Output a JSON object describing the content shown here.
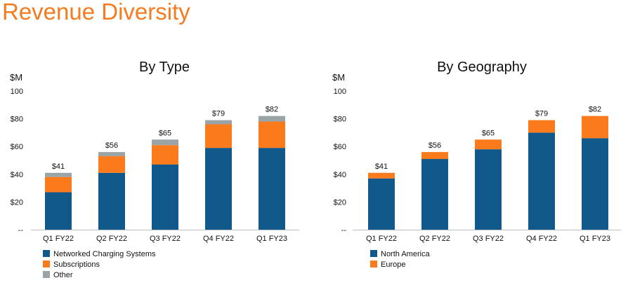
{
  "page": {
    "title": "Revenue Diversity"
  },
  "colors": {
    "title": "#f47b20",
    "navy": "#11598a",
    "orange": "#fb7a1c",
    "gray": "#9aa4a6"
  },
  "chart_data": [
    {
      "type": "bar",
      "stacked": true,
      "title": "By Type",
      "ylabel": "$M",
      "ylim": [
        0,
        100
      ],
      "yticks": [
        "--",
        "$20",
        "$40",
        "$60",
        "$80",
        "100"
      ],
      "categories": [
        "Q1 FY22",
        "Q2 FY22",
        "Q3 FY22",
        "Q4 FY22",
        "Q1 FY23"
      ],
      "series": [
        {
          "name": "Networked Charging Systems",
          "color": "#11598a",
          "values": [
            27,
            41,
            47,
            59,
            59
          ]
        },
        {
          "name": "Subscriptions",
          "color": "#fb7a1c",
          "values": [
            11,
            12,
            14,
            17,
            19
          ]
        },
        {
          "name": "Other",
          "color": "#9aa4a6",
          "values": [
            3,
            3,
            4,
            3,
            4
          ]
        }
      ],
      "totals": [
        "$41",
        "$56",
        "$65",
        "$79",
        "$82"
      ],
      "legend": "bottom-left"
    },
    {
      "type": "bar",
      "stacked": true,
      "title": "By Geography",
      "ylabel": "$M",
      "ylim": [
        0,
        100
      ],
      "yticks": [
        "--",
        "$20",
        "$40",
        "$60",
        "$80",
        "100"
      ],
      "categories": [
        "Q1 FY22",
        "Q2 FY22",
        "Q3 FY22",
        "Q4 FY22",
        "Q1 FY23"
      ],
      "series": [
        {
          "name": "North America",
          "color": "#11598a",
          "values": [
            37,
            51,
            58,
            70,
            66
          ]
        },
        {
          "name": "Europe",
          "color": "#fb7a1c",
          "values": [
            4,
            5,
            7,
            9,
            16
          ]
        }
      ],
      "totals": [
        "$41",
        "$56",
        "$65",
        "$79",
        "$82"
      ],
      "legend": "bottom-left"
    }
  ]
}
